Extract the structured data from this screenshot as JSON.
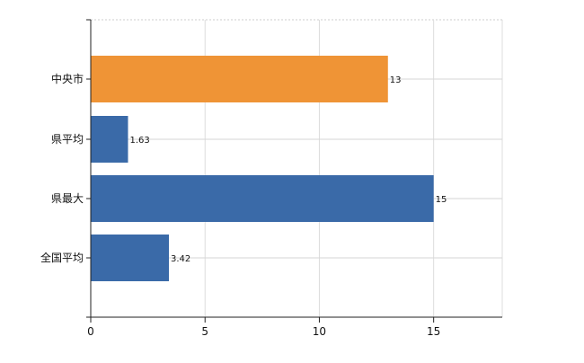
{
  "chart_data": {
    "type": "bar",
    "orientation": "horizontal",
    "categories": [
      "中央市",
      "県平均",
      "県最大",
      "全国平均"
    ],
    "values": [
      13,
      1.63,
      15,
      3.42
    ],
    "data_labels": [
      "13",
      "1.63",
      "15",
      "3.42"
    ],
    "colors": [
      "#ef9436",
      "#3a6aa8",
      "#3a6aa8",
      "#3a6aa8"
    ],
    "xlim": [
      0,
      18
    ],
    "xticks": [
      0,
      5,
      10,
      15
    ],
    "xtick_labels": [
      "0",
      "5",
      "10",
      "15"
    ],
    "grid": true,
    "title": "",
    "xlabel": "",
    "ylabel": ""
  }
}
